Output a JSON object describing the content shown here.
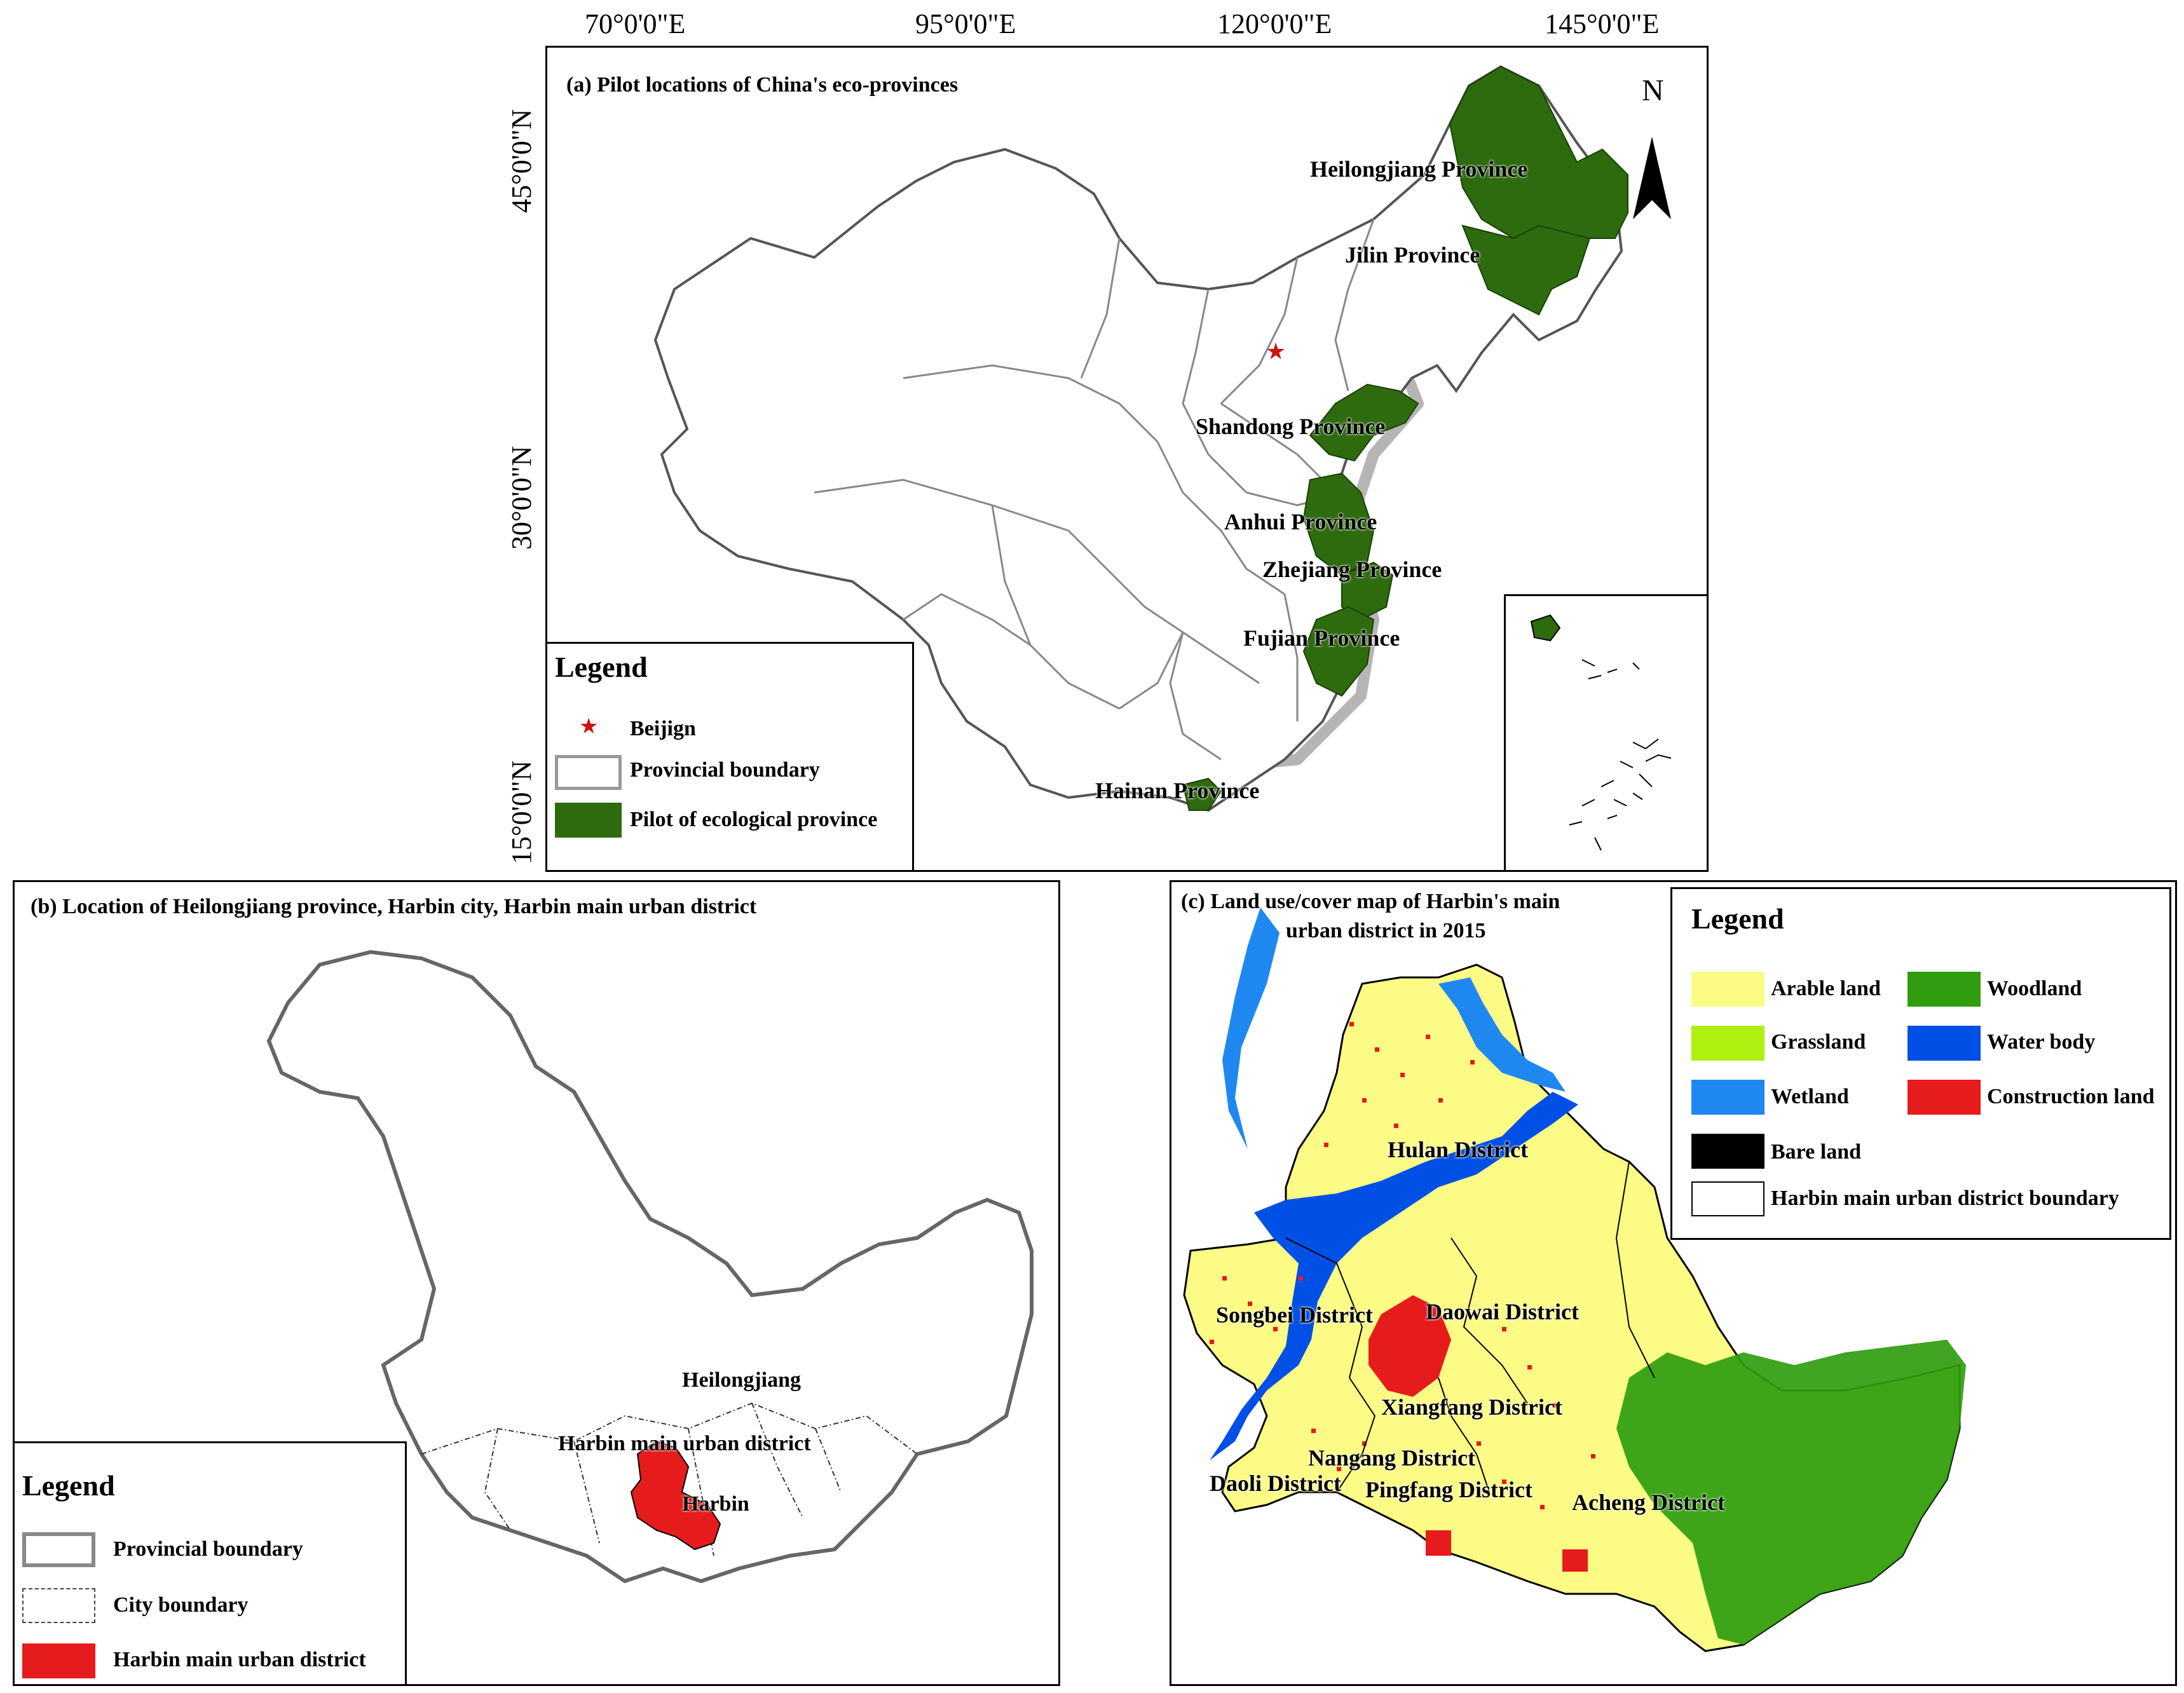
{
  "colors": {
    "pilot": "#2e6b0e",
    "coast_gray": "#b5b5b5",
    "boundary": "#555555",
    "arable": "#fbfb85",
    "woodland": "#2f9d0f",
    "grassland": "#b0f010",
    "water": "#0050e6",
    "wetland": "#1e88f0",
    "construction": "#e61b1b",
    "bare": "#000000",
    "star": "#cc1111"
  },
  "panel_a": {
    "title": "(a) Pilot locations of China's eco-provinces",
    "lon_labels": [
      "70°0'0\"E",
      "95°0'0\"E",
      "120°0'0\"E",
      "145°0'0\"E"
    ],
    "lat_labels": [
      "45°0'0\"N",
      "30°0'0\"N",
      "15°0'0\"N"
    ],
    "north": "N",
    "provinces": [
      "Heilongjiang Province",
      "Jilin Province",
      "Shandong Province",
      "Anhui Province",
      "Zhejiang Province",
      "Fujian Province",
      "Hainan Province"
    ],
    "legend": {
      "title": "Legend",
      "items": [
        "Beijign",
        "Provincial  boundary",
        "Pilot of ecological province"
      ],
      "icons": [
        "star-icon",
        "boundary-swatch",
        "pilot-swatch"
      ]
    }
  },
  "panel_b": {
    "title": "(b) Location of Heilongjiang province, Harbin city, Harbin main urban district",
    "labels": [
      "Heilongjiang",
      "Harbin main urban district",
      "Harbin"
    ],
    "legend": {
      "title": "Legend",
      "items": [
        "Provincial boundary",
        "City boundary",
        "Harbin main urban district"
      ]
    }
  },
  "panel_c": {
    "title_line1": "(c) Land use/cover map of Harbin's main",
    "title_line2": "urban district in 2015",
    "districts": [
      "Hulan District",
      "Songbei District",
      "Daowai District",
      "Xiangfang District",
      "Nangang District",
      "Daoli District",
      "Pingfang District",
      "Acheng District"
    ],
    "legend": {
      "title": "Legend",
      "items": [
        "Arable land",
        "Woodland",
        "Grassland",
        "Water body",
        "Wetland",
        "Construction land",
        "Bare land",
        "Harbin main urban district boundary"
      ]
    }
  }
}
